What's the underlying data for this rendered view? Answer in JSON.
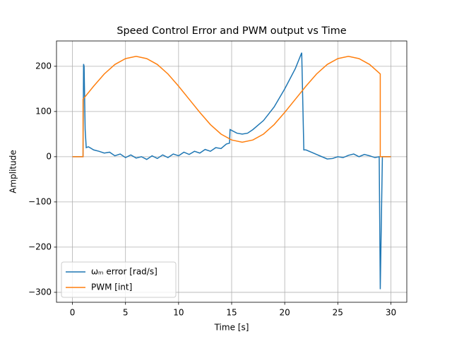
{
  "chart_data": {
    "type": "line",
    "title": "Speed Control Error and PWM output vs Time",
    "xlabel": "Time [s]",
    "ylabel": "Amplitude",
    "xlim": [
      -1.5,
      31.5
    ],
    "ylim": [
      -322,
      256
    ],
    "xticks": [
      0,
      5,
      10,
      15,
      20,
      25,
      30
    ],
    "yticks": [
      {
        "value": -300,
        "label": "−300"
      },
      {
        "value": -200,
        "label": "−200"
      },
      {
        "value": -100,
        "label": "−100"
      },
      0,
      100,
      200
    ],
    "grid": true,
    "legend": "lower left",
    "series": [
      {
        "name": "ωₘ error [rad/s]",
        "color": "#1f77b4",
        "x": [
          0,
          1,
          1.05,
          1.1,
          1.2,
          1.3,
          1.5,
          2,
          2.5,
          3,
          3.5,
          4,
          4.5,
          5,
          5.5,
          6,
          6.5,
          7,
          7.5,
          8,
          8.5,
          9,
          9.5,
          10,
          10.5,
          11,
          11.5,
          12,
          12.5,
          13,
          13.5,
          14,
          14.5,
          14.8,
          14.85,
          15.5,
          16,
          16.5,
          17,
          18,
          19,
          20,
          21,
          21.6,
          21.8,
          22,
          22.5,
          23,
          23.5,
          24,
          24.5,
          25,
          25.5,
          26,
          26.5,
          27,
          27.5,
          28,
          28.5,
          28.9,
          29,
          29.2,
          30
        ],
        "values": [
          0,
          0,
          205,
          200,
          60,
          20,
          22,
          15,
          12,
          8,
          10,
          2,
          6,
          -2,
          4,
          -3,
          0,
          -6,
          2,
          -4,
          4,
          -2,
          6,
          2,
          10,
          5,
          12,
          8,
          16,
          12,
          20,
          18,
          28,
          30,
          60,
          52,
          50,
          52,
          60,
          80,
          110,
          150,
          195,
          230,
          15,
          15,
          10,
          5,
          0,
          -5,
          -4,
          0,
          -2,
          3,
          6,
          0,
          5,
          2,
          -2,
          0,
          -293,
          0,
          0
        ]
      },
      {
        "name": "PWM [int]",
        "color": "#ff7f0e",
        "x": [
          0,
          1,
          1,
          2,
          3,
          4,
          5,
          6,
          7,
          8,
          9,
          10,
          11,
          12,
          13,
          14,
          15,
          16,
          17,
          18,
          19,
          20,
          21,
          22,
          23,
          24,
          25,
          26,
          27,
          28,
          29,
          29,
          30
        ],
        "values": [
          0,
          0,
          127,
          156,
          183,
          204,
          217,
          222,
          217,
          204,
          183,
          156,
          127,
          98,
          71,
          50,
          37,
          32,
          37,
          50,
          71,
          98,
          127,
          156,
          183,
          204,
          217,
          222,
          217,
          204,
          183,
          0,
          0
        ]
      }
    ]
  }
}
